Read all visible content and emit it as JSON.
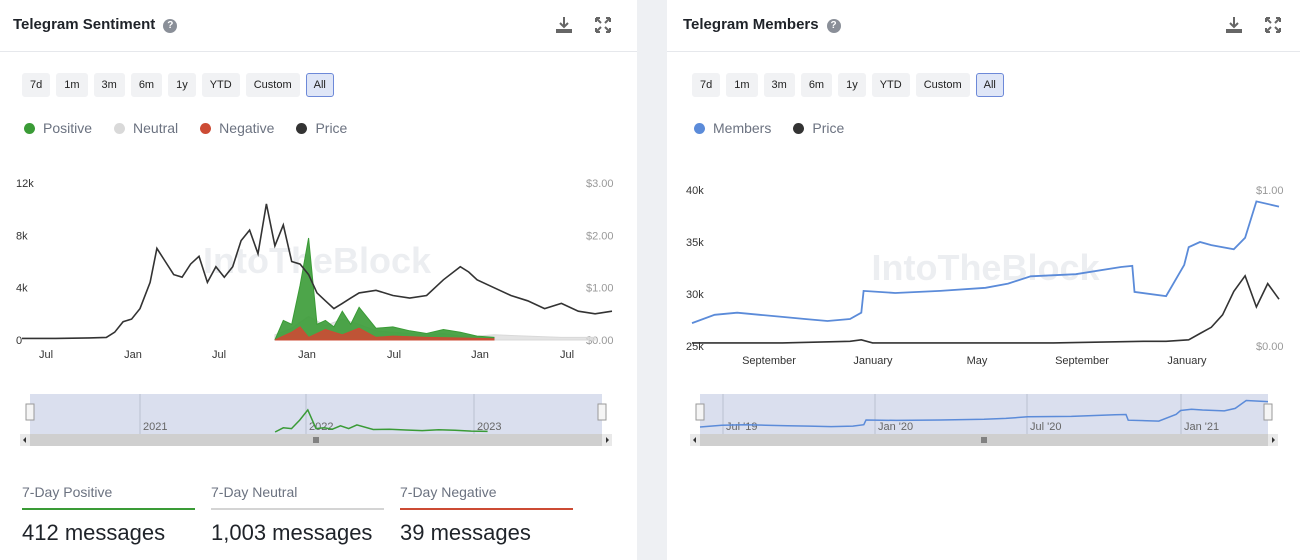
{
  "colors": {
    "positive": "#3a9b36",
    "neutral": "#d9d9d9",
    "negative": "#cc4b34",
    "price": "#333333",
    "members": "#5b8bd9"
  },
  "left": {
    "title": "Telegram Sentiment",
    "help_icon": "question-circle-icon",
    "ranges": [
      "7d",
      "1m",
      "3m",
      "6m",
      "1y",
      "YTD",
      "Custom",
      "All"
    ],
    "active_range": "All",
    "legend": [
      "Positive",
      "Neutral",
      "Negative",
      "Price"
    ],
    "stats": [
      {
        "label": "7-Day Positive",
        "value": "412 messages",
        "color": "#3a9b36"
      },
      {
        "label": "7-Day Neutral",
        "value": "1,003 messages",
        "color": "#d4d4d4"
      },
      {
        "label": "7-Day Negative",
        "value": "39 messages",
        "color": "#cc4b34"
      }
    ]
  },
  "right": {
    "title": "Telegram Members",
    "help_icon": "question-circle-icon",
    "ranges": [
      "7d",
      "1m",
      "3m",
      "6m",
      "1y",
      "YTD",
      "Custom",
      "All"
    ],
    "active_range": "All",
    "legend": [
      "Members",
      "Price"
    ]
  },
  "chart_data": [
    {
      "type": "area",
      "title": "Telegram Sentiment",
      "x_ticks": [
        "Jul",
        "Jan",
        "Jul",
        "Jan",
        "Jul",
        "Jan",
        "Jul"
      ],
      "y_left_ticks": [
        "0",
        "4k",
        "8k",
        "12k"
      ],
      "y_left_range": [
        0,
        12000
      ],
      "y_right_ticks": [
        "$0.00",
        "$1.00",
        "$2.00",
        "$3.00"
      ],
      "y_right_range": [
        0,
        3
      ],
      "x_range": [
        0,
        35
      ],
      "navigator_ticks": [
        "2021",
        "2022",
        "2023"
      ],
      "series": [
        {
          "name": "Price",
          "x": [
            0,
            2,
            4,
            5,
            5.5,
            6,
            6.5,
            7,
            7.6,
            8,
            8.5,
            9,
            9.5,
            10,
            10.5,
            11,
            11.5,
            12,
            12.5,
            13,
            13.5,
            14,
            14.5,
            15,
            15.5,
            16,
            16.5,
            17,
            17.5,
            18,
            18.5,
            19,
            19.5,
            20,
            21,
            22,
            23,
            24,
            25,
            26,
            26.5,
            27,
            28,
            29,
            30,
            31,
            32,
            33,
            34,
            35
          ],
          "values": [
            0.03,
            0.03,
            0.04,
            0.05,
            0.15,
            0.35,
            0.4,
            0.6,
            1.1,
            1.75,
            1.5,
            1.25,
            1.2,
            1.45,
            1.6,
            1.1,
            1.4,
            1.2,
            1.4,
            1.9,
            2.1,
            1.65,
            2.6,
            1.8,
            2.2,
            1.5,
            1.45,
            1.25,
            0.9,
            0.75,
            0.6,
            0.7,
            0.8,
            0.9,
            0.95,
            0.85,
            0.8,
            0.85,
            1.15,
            1.4,
            1.3,
            1.15,
            1.0,
            0.85,
            0.75,
            0.6,
            0.7,
            0.55,
            0.5,
            0.55
          ]
        },
        {
          "name": "Positive",
          "x": [
            15,
            15.5,
            16,
            16.5,
            17,
            17.5,
            18,
            18.5,
            19,
            19.5,
            20,
            21,
            22,
            23,
            24,
            25,
            26,
            27,
            28
          ],
          "values": [
            0,
            1500,
            1200,
            4200,
            7800,
            1200,
            1500,
            1000,
            2200,
            1200,
            2500,
            900,
            1000,
            700,
            500,
            800,
            600,
            300,
            200
          ]
        },
        {
          "name": "Neutral",
          "x": [
            15,
            16,
            17,
            18,
            19,
            20,
            21,
            22,
            23,
            24,
            25,
            26,
            27,
            28,
            30,
            32,
            34
          ],
          "values": [
            400,
            900,
            1800,
            1100,
            1600,
            1200,
            700,
            600,
            500,
            400,
            500,
            300,
            300,
            400,
            300,
            200,
            200
          ]
        },
        {
          "name": "Negative",
          "x": [
            15,
            16,
            16.5,
            17,
            18,
            19,
            20,
            21,
            22,
            24,
            26,
            28
          ],
          "values": [
            0,
            600,
            1000,
            200,
            800,
            400,
            900,
            200,
            300,
            200,
            150,
            100
          ]
        }
      ]
    },
    {
      "type": "line",
      "title": "Telegram Members",
      "x_ticks": [
        "September",
        "January",
        "May",
        "September",
        "January"
      ],
      "y_left_ticks": [
        "25k",
        "30k",
        "35k",
        "40k"
      ],
      "y_left_range": [
        25000,
        40000
      ],
      "y_right_ticks": [
        "$0.00",
        "$1.00"
      ],
      "y_right_range": [
        0,
        1
      ],
      "x_range": [
        0,
        26
      ],
      "navigator_ticks": [
        "Jul '19",
        "Jan '20",
        "Jul '20",
        "Jan '21"
      ],
      "series": [
        {
          "name": "Members",
          "x": [
            0,
            1,
            2,
            3,
            4,
            5,
            6,
            7,
            7.5,
            7.6,
            9,
            11,
            13,
            14,
            15,
            17,
            19,
            19.5,
            19.6,
            21,
            21.8,
            22,
            22.5,
            23,
            24,
            24.5,
            25,
            26
          ],
          "values": [
            27200,
            28000,
            28200,
            28000,
            27800,
            27600,
            27400,
            27600,
            28200,
            30300,
            30100,
            30300,
            30600,
            31000,
            31700,
            31900,
            32600,
            32700,
            30200,
            29800,
            32800,
            34500,
            35000,
            34700,
            34300,
            35400,
            38900,
            38400
          ]
        },
        {
          "name": "Price",
          "x": [
            0,
            4,
            7,
            7.5,
            8,
            12,
            16,
            20,
            21,
            22,
            22.5,
            23,
            23.5,
            24,
            24.5,
            25,
            25.5,
            26
          ],
          "values": [
            0.02,
            0.02,
            0.03,
            0.04,
            0.02,
            0.02,
            0.02,
            0.03,
            0.03,
            0.04,
            0.08,
            0.12,
            0.2,
            0.35,
            0.45,
            0.25,
            0.4,
            0.3
          ]
        }
      ]
    }
  ]
}
